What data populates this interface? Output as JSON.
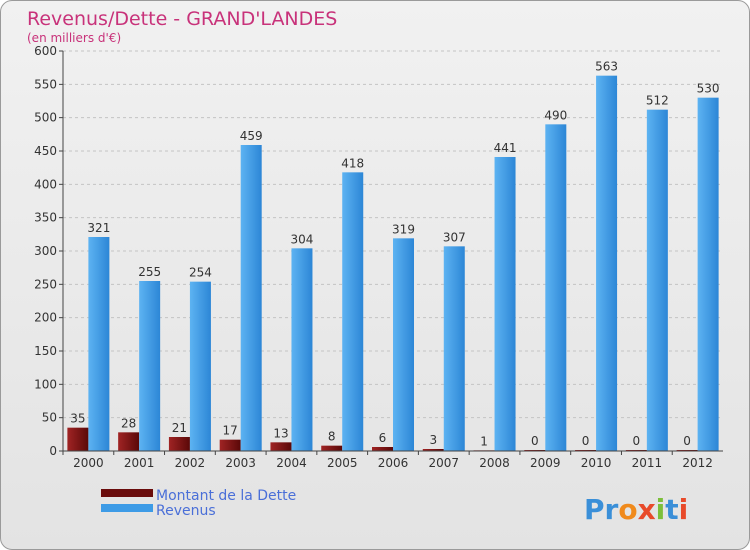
{
  "chart_data": {
    "type": "bar",
    "title": "Revenus/Dette - GRAND'LANDES",
    "subtitle": "(en milliers d'€)",
    "categories": [
      "2000",
      "2001",
      "2002",
      "2003",
      "2004",
      "2005",
      "2006",
      "2007",
      "2008",
      "2009",
      "2010",
      "2011",
      "2012"
    ],
    "series": [
      {
        "name": "Montant de la Dette",
        "color": "#7a1010",
        "values": [
          35,
          28,
          21,
          17,
          13,
          8,
          6,
          3,
          1,
          0,
          0,
          0,
          0
        ]
      },
      {
        "name": "Revenus",
        "color": "#3d9be6",
        "values": [
          321,
          255,
          254,
          459,
          304,
          418,
          319,
          307,
          441,
          490,
          563,
          512,
          530
        ]
      }
    ],
    "ylim": [
      0,
      600
    ],
    "yticks": [
      0,
      50,
      100,
      150,
      200,
      250,
      300,
      350,
      400,
      450,
      500,
      550,
      600
    ],
    "grid": true,
    "legend": "bottom-left"
  },
  "branding": {
    "logo_text": "Proxiti",
    "logo_letters": [
      "P",
      "r",
      "o",
      "x",
      "i",
      "t",
      "i"
    ],
    "logo_colors": [
      "#3a8fd8",
      "#3a8fd8",
      "#f08a1c",
      "#e84a2a",
      "#7cbf3a",
      "#3a8fd8",
      "#e84a2a"
    ]
  }
}
